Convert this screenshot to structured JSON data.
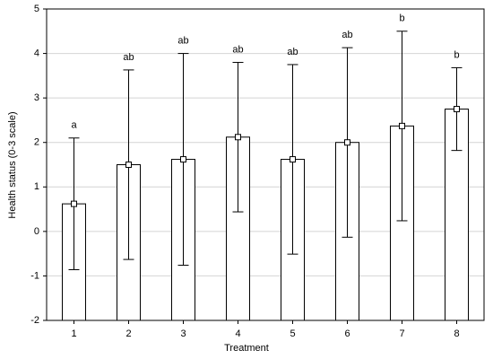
{
  "chart_data": {
    "type": "bar",
    "x_label": "Treatment",
    "y_label": "Health status (0-3 scale)",
    "categories": [
      "1",
      "2",
      "3",
      "4",
      "5",
      "6",
      "7",
      "8"
    ],
    "values": [
      0.62,
      1.5,
      1.62,
      2.12,
      1.62,
      2.0,
      2.37,
      2.75
    ],
    "errors": [
      1.48,
      2.13,
      2.38,
      1.68,
      2.13,
      2.13,
      2.13,
      0.93
    ],
    "annotations": [
      "a",
      "ab",
      "ab",
      "ab",
      "ab",
      "ab",
      "b",
      "b"
    ],
    "color": "#ffffff",
    "ylim": [
      -2,
      5
    ],
    "yticks": [
      -2,
      -1,
      0,
      1,
      2,
      3,
      4,
      5
    ],
    "grid": true
  }
}
